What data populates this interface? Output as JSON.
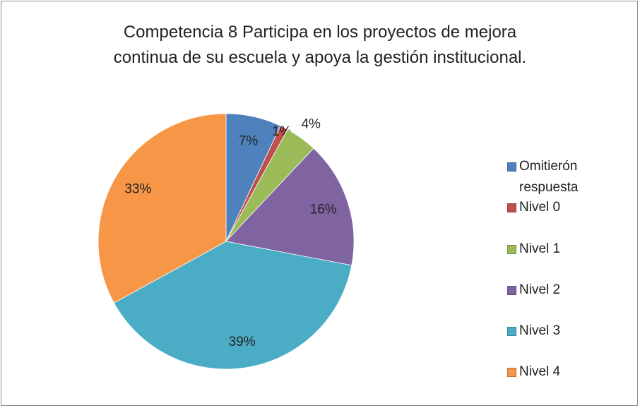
{
  "chart_data": {
    "type": "pie",
    "title": "Competencia 8 Participa en los proyectos de mejora continua de su escuela y apoya la gestión institucional.",
    "categories": [
      "Omitierón respuesta",
      "Nivel 0",
      "Nivel 1",
      "Nivel 2",
      "Nivel 3",
      "Nivel 4"
    ],
    "values": [
      7,
      1,
      4,
      16,
      39,
      33
    ],
    "value_labels": [
      "7%",
      "1%",
      "4%",
      "16%",
      "39%",
      "33%"
    ],
    "colors": [
      "#4f81bd",
      "#c0504d",
      "#9bbb59",
      "#8064a2",
      "#4bacc6",
      "#f79646"
    ],
    "legend": "right"
  }
}
